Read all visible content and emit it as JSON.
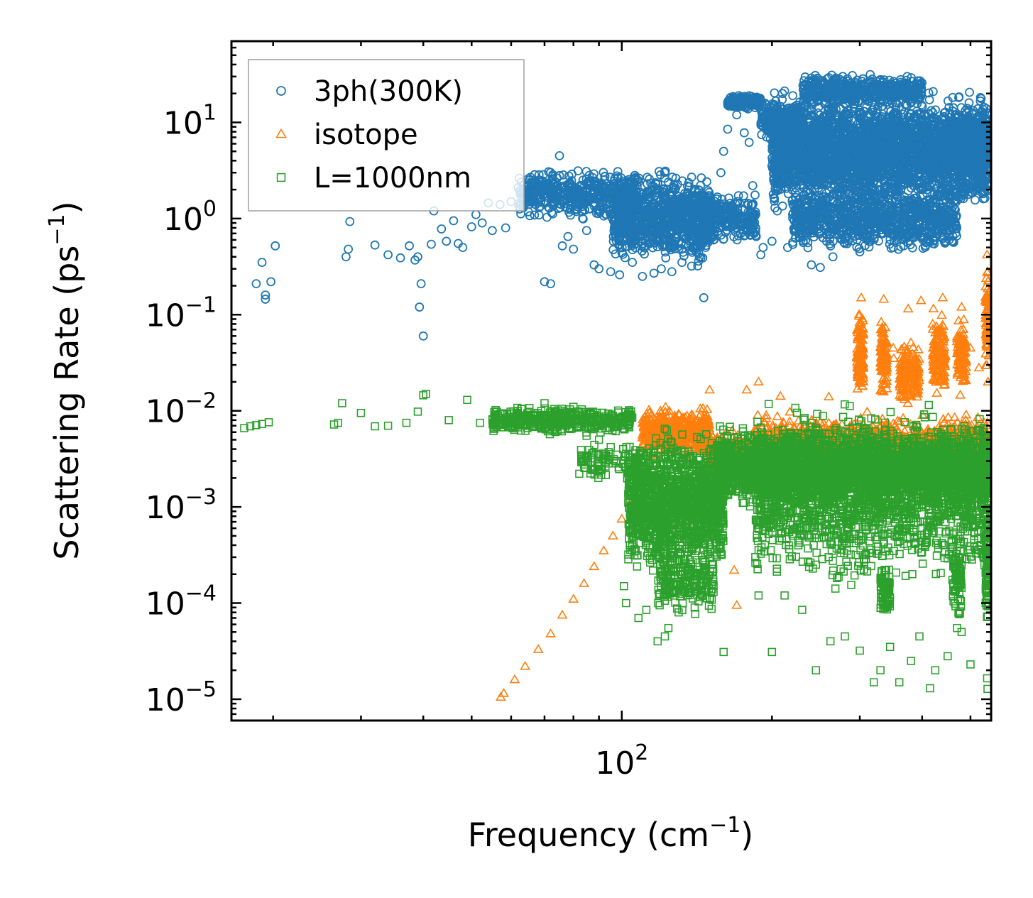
{
  "chart_data": {
    "type": "scatter",
    "xscale": "log",
    "yscale": "log",
    "xlabel": "Frequency (cm^-1)",
    "xlabel_base": "Frequency (cm",
    "xlabel_exp": "−1",
    "xlabel_tail": ")",
    "ylabel": "Scattering Rate (ps^-1)",
    "ylabel_base": "Scattering Rate (ps",
    "ylabel_exp": "−1",
    "ylabel_tail": ")",
    "xlim": [
      16.5,
      550
    ],
    "ylim": [
      6e-06,
      70
    ],
    "xticks": [
      {
        "value": 100,
        "base": "10",
        "exp": "2"
      }
    ],
    "yticks": [
      {
        "value": 10,
        "base": "10",
        "exp": "1"
      },
      {
        "value": 1,
        "base": "10",
        "exp": "0"
      },
      {
        "value": 0.1,
        "base": "10",
        "exp": "−1"
      },
      {
        "value": 0.01,
        "base": "10",
        "exp": "−2"
      },
      {
        "value": 0.001,
        "base": "10",
        "exp": "−3"
      },
      {
        "value": 0.0001,
        "base": "10",
        "exp": "−4"
      },
      {
        "value": 1e-05,
        "base": "10",
        "exp": "−5"
      }
    ],
    "legend_position": "top-left",
    "series": [
      {
        "name": "3ph(300K)",
        "marker": "circle",
        "color": "#1f77b4",
        "points": [
          [
            18.5,
            0.21
          ],
          [
            19.0,
            0.35
          ],
          [
            19.3,
            0.16
          ],
          [
            19.3,
            0.145
          ],
          [
            19.8,
            0.22
          ],
          [
            20.2,
            0.52
          ],
          [
            28.0,
            0.4
          ],
          [
            28.3,
            0.48
          ],
          [
            28.5,
            0.93
          ],
          [
            32.0,
            0.53
          ],
          [
            34.0,
            0.42
          ],
          [
            36.0,
            0.39
          ],
          [
            37.5,
            0.52
          ],
          [
            38.5,
            0.37
          ],
          [
            39.0,
            0.4
          ],
          [
            39.3,
            0.12
          ],
          [
            39.6,
            0.21
          ],
          [
            40.0,
            0.06
          ],
          [
            41.5,
            0.54
          ],
          [
            42.0,
            1.2
          ],
          [
            43.5,
            0.78
          ],
          [
            44.5,
            0.58
          ],
          [
            46.0,
            0.95
          ],
          [
            47.0,
            0.55
          ],
          [
            48.0,
            0.5
          ],
          [
            50.0,
            0.82
          ],
          [
            51.0,
            1.1
          ],
          [
            52.5,
            0.9
          ],
          [
            54.0,
            1.45
          ],
          [
            55.0,
            0.75
          ],
          [
            57.0,
            1.4
          ],
          [
            58.5,
            0.8
          ],
          [
            60.0,
            1.5
          ],
          [
            62.0,
            2.1
          ],
          [
            63.5,
            1.3
          ],
          [
            65.0,
            2.6
          ],
          [
            66.0,
            1.8
          ],
          [
            68.0,
            2.3
          ],
          [
            70.0,
            0.22
          ],
          [
            72.0,
            0.21
          ],
          [
            75.0,
            4.5
          ],
          [
            76.0,
            0.52
          ],
          [
            78.0,
            0.65
          ],
          [
            80.0,
            0.48
          ],
          [
            85.0,
            0.75
          ],
          [
            88.0,
            0.33
          ],
          [
            90.0,
            0.3
          ],
          [
            95.0,
            0.28
          ],
          [
            99.0,
            0.26
          ],
          [
            105.0,
            0.35
          ],
          [
            110.0,
            0.25
          ],
          [
            116.0,
            0.27
          ],
          [
            120.0,
            0.3
          ],
          [
            126.0,
            0.28
          ],
          [
            132.0,
            0.35
          ],
          [
            138.0,
            0.32
          ],
          [
            143.0,
            0.4
          ],
          [
            146.0,
            0.15
          ],
          [
            149.0,
            0.78
          ],
          [
            151.0,
            0.62
          ],
          [
            155.0,
            1.6
          ],
          [
            158.0,
            3.0
          ],
          [
            160.0,
            5.0
          ],
          [
            163.0,
            8.5
          ],
          [
            166.0,
            15.0
          ],
          [
            170.0,
            12.0
          ],
          [
            176.0,
            7.8
          ],
          [
            180.0,
            6.2
          ],
          [
            183.0,
            2.2
          ],
          [
            186.0,
            0.65
          ],
          [
            190.0,
            0.42
          ],
          [
            192.0,
            0.5
          ],
          [
            200.0,
            0.58
          ],
          [
            205.0,
            1.2
          ],
          [
            210.0,
            1.35
          ],
          [
            215.0,
            0.5
          ],
          [
            228.0,
            0.63
          ],
          [
            240.0,
            0.33
          ],
          [
            250.0,
            0.31
          ],
          [
            265.0,
            0.4
          ],
          [
            280.0,
            0.55
          ],
          [
            300.0,
            0.45
          ],
          [
            350.0,
            0.5
          ],
          [
            420.0,
            0.55
          ],
          [
            440.0,
            0.62
          ],
          [
            460.0,
            0.58
          ],
          [
            520.0,
            5.6
          ],
          [
            540.0,
            12.0
          ],
          [
            541.0,
            9.5
          ]
        ],
        "clusters": [
          {
            "x": [
              62,
              108
            ],
            "y": [
              0.9,
              3.6
            ],
            "n": 480
          },
          {
            "x": [
              96,
              152
            ],
            "y": [
              0.27,
              3.7
            ],
            "n": 900
          },
          {
            "x": [
              150,
              186
            ],
            "y": [
              0.5,
              2.0
            ],
            "n": 220
          },
          {
            "x": [
              163,
              190
            ],
            "y": [
              13.5,
              20.0
            ],
            "n": 180
          },
          {
            "x": [
              190,
              232
            ],
            "y": [
              6.0,
              18.0
            ],
            "n": 260
          },
          {
            "x": [
              200,
              545
            ],
            "y": [
              1.0,
              25.0
            ],
            "n": 3200
          },
          {
            "x": [
              220,
              470
            ],
            "y": [
              0.4,
              2.5
            ],
            "n": 900
          },
          {
            "x": [
              230,
              400
            ],
            "y": [
              14.0,
              34.0
            ],
            "n": 500
          },
          {
            "x": [
              470,
              545
            ],
            "y": [
              3.5,
              13.0
            ],
            "n": 500
          }
        ]
      },
      {
        "name": "isotope",
        "marker": "triangle",
        "color": "#ff7f0e",
        "points": [
          [
            57.2,
            1.05e-05
          ],
          [
            58.0,
            1.15e-05
          ],
          [
            61.0,
            1.6e-05
          ],
          [
            64.0,
            2.2e-05
          ],
          [
            68.0,
            3.3e-05
          ],
          [
            72.0,
            4.8e-05
          ],
          [
            76.0,
            7.5e-05
          ],
          [
            80.0,
            0.00011
          ],
          [
            84.0,
            0.00016
          ],
          [
            88.0,
            0.00024
          ],
          [
            92.0,
            0.00035
          ],
          [
            96.0,
            0.0005
          ],
          [
            100.0,
            0.00075
          ],
          [
            104.0,
            0.0011
          ],
          [
            108.0,
            0.0016
          ],
          [
            111.0,
            0.0024
          ],
          [
            170.0,
            9.5e-05
          ],
          [
            168.0,
            0.00022
          ],
          [
            150.0,
            0.0165
          ],
          [
            178.0,
            0.0165
          ],
          [
            188.0,
            0.02
          ],
          [
            208.0,
            0.0142
          ],
          [
            260.0,
            0.014
          ],
          [
            302.0,
            0.15
          ],
          [
            335.0,
            0.145
          ],
          [
            350.0,
            0.045
          ],
          [
            351.0,
            0.035
          ],
          [
            375.0,
            0.115
          ],
          [
            398.0,
            0.14
          ],
          [
            420.0,
            0.08
          ],
          [
            430.0,
            0.045
          ],
          [
            440.0,
            0.15
          ],
          [
            480.0,
            0.12
          ],
          [
            500.0,
            0.045
          ],
          [
            520.0,
            0.028
          ],
          [
            540.0,
            0.42
          ],
          [
            541.0,
            0.28
          ],
          [
            539.0,
            0.065
          ],
          [
            542.0,
            0.02
          ],
          [
            540.5,
            0.0075
          ]
        ],
        "clusters": [
          {
            "x": [
              110,
              150
            ],
            "y": [
              0.003,
              0.012
            ],
            "n": 500
          },
          {
            "x": [
              150,
              185
            ],
            "y": [
              0.0015,
              0.007
            ],
            "n": 280
          },
          {
            "x": [
              185,
              540
            ],
            "y": [
              0.002,
              0.01
            ],
            "n": 1200
          },
          {
            "x": [
              296,
              305
            ],
            "y": [
              0.012,
              0.14
            ],
            "n": 120
          },
          {
            "x": [
              330,
              340
            ],
            "y": [
              0.012,
              0.12
            ],
            "n": 110
          },
          {
            "x": [
              360,
              395
            ],
            "y": [
              0.01,
              0.06
            ],
            "n": 160
          },
          {
            "x": [
              420,
              445
            ],
            "y": [
              0.012,
              0.13
            ],
            "n": 130
          },
          {
            "x": [
              470,
              490
            ],
            "y": [
              0.012,
              0.1
            ],
            "n": 110
          },
          {
            "x": [
              536,
              545
            ],
            "y": [
              0.02,
              0.4
            ],
            "n": 70
          }
        ]
      },
      {
        "name": "L=1000nm",
        "marker": "square",
        "color": "#2ca02c",
        "points": [
          [
            17.5,
            0.0066
          ],
          [
            18.0,
            0.0069
          ],
          [
            18.5,
            0.0071
          ],
          [
            19.0,
            0.0073
          ],
          [
            19.6,
            0.0076
          ],
          [
            26.5,
            0.0072
          ],
          [
            27.0,
            0.0075
          ],
          [
            27.5,
            0.012
          ],
          [
            30.0,
            0.0095
          ],
          [
            32.0,
            0.0069
          ],
          [
            34.0,
            0.007
          ],
          [
            37.0,
            0.0075
          ],
          [
            39.0,
            0.0098
          ],
          [
            40.0,
            0.0145
          ],
          [
            40.5,
            0.015
          ],
          [
            45.0,
            0.008
          ],
          [
            49.0,
            0.013
          ],
          [
            52.0,
            0.0075
          ],
          [
            56.0,
            0.009
          ],
          [
            60.0,
            0.0068
          ],
          [
            65.0,
            0.0085
          ],
          [
            70.0,
            0.012
          ],
          [
            75.0,
            0.0072
          ],
          [
            80.0,
            0.011
          ],
          [
            85.0,
            0.0055
          ],
          [
            90.0,
            0.005
          ],
          [
            95.0,
            0.0042
          ],
          [
            98.0,
            0.0035
          ],
          [
            101.0,
            0.00015
          ],
          [
            102.0,
            0.0001
          ],
          [
            108.0,
            7e-05
          ],
          [
            112.0,
            8.5e-05
          ],
          [
            118.0,
            4e-05
          ],
          [
            122.0,
            4.5e-05
          ],
          [
            124.0,
            5.5e-05
          ],
          [
            130.0,
            8e-05
          ],
          [
            140.0,
            9e-05
          ],
          [
            150.0,
            0.00011
          ],
          [
            160.0,
            3.1e-05
          ],
          [
            188.0,
            0.00012
          ],
          [
            200.0,
            3.1e-05
          ],
          [
            212.0,
            0.00012
          ],
          [
            230.0,
            8.5e-05
          ],
          [
            245.0,
            2e-05
          ],
          [
            262.0,
            4e-05
          ],
          [
            280.0,
            4.5e-05
          ],
          [
            300.0,
            3.2e-05
          ],
          [
            320.0,
            1.5e-05
          ],
          [
            330.0,
            2e-05
          ],
          [
            345.0,
            3.5e-05
          ],
          [
            360.0,
            1.5e-05
          ],
          [
            380.0,
            2.5e-05
          ],
          [
            395.0,
            4.5e-05
          ],
          [
            415.0,
            1.3e-05
          ],
          [
            425.0,
            2e-05
          ],
          [
            450.0,
            2.8e-05
          ],
          [
            470.0,
            5.5e-05
          ],
          [
            480.0,
            5e-05
          ],
          [
            500.0,
            2.3e-05
          ],
          [
            540.0,
            1.65e-05
          ],
          [
            541.0,
            1.28e-05
          ],
          [
            540.0,
            0.00011
          ]
        ],
        "clusters": [
          {
            "x": [
              55,
              105
            ],
            "y": [
              0.0055,
              0.0115
            ],
            "n": 420
          },
          {
            "x": [
              82,
              108
            ],
            "y": [
              0.0015,
              0.0055
            ],
            "n": 90
          },
          {
            "x": [
              103,
              160
            ],
            "y": [
              0.00015,
              0.008
            ],
            "n": 1400
          },
          {
            "x": [
              118,
              153
            ],
            "y": [
              7e-05,
              0.0004
            ],
            "n": 180
          },
          {
            "x": [
              155,
              545
            ],
            "y": [
              0.0008,
              0.008
            ],
            "n": 2600
          },
          {
            "x": [
              185,
              545
            ],
            "y": [
              0.00012,
              0.015
            ],
            "n": 1700
          },
          {
            "x": [
              330,
              345
            ],
            "y": [
              6e-05,
              0.0003
            ],
            "n": 90
          },
          {
            "x": [
              460,
              480
            ],
            "y": [
              6e-05,
              0.0005
            ],
            "n": 70
          },
          {
            "x": [
              536,
              545
            ],
            "y": [
              5e-05,
              0.0014
            ],
            "n": 90
          }
        ]
      }
    ]
  }
}
